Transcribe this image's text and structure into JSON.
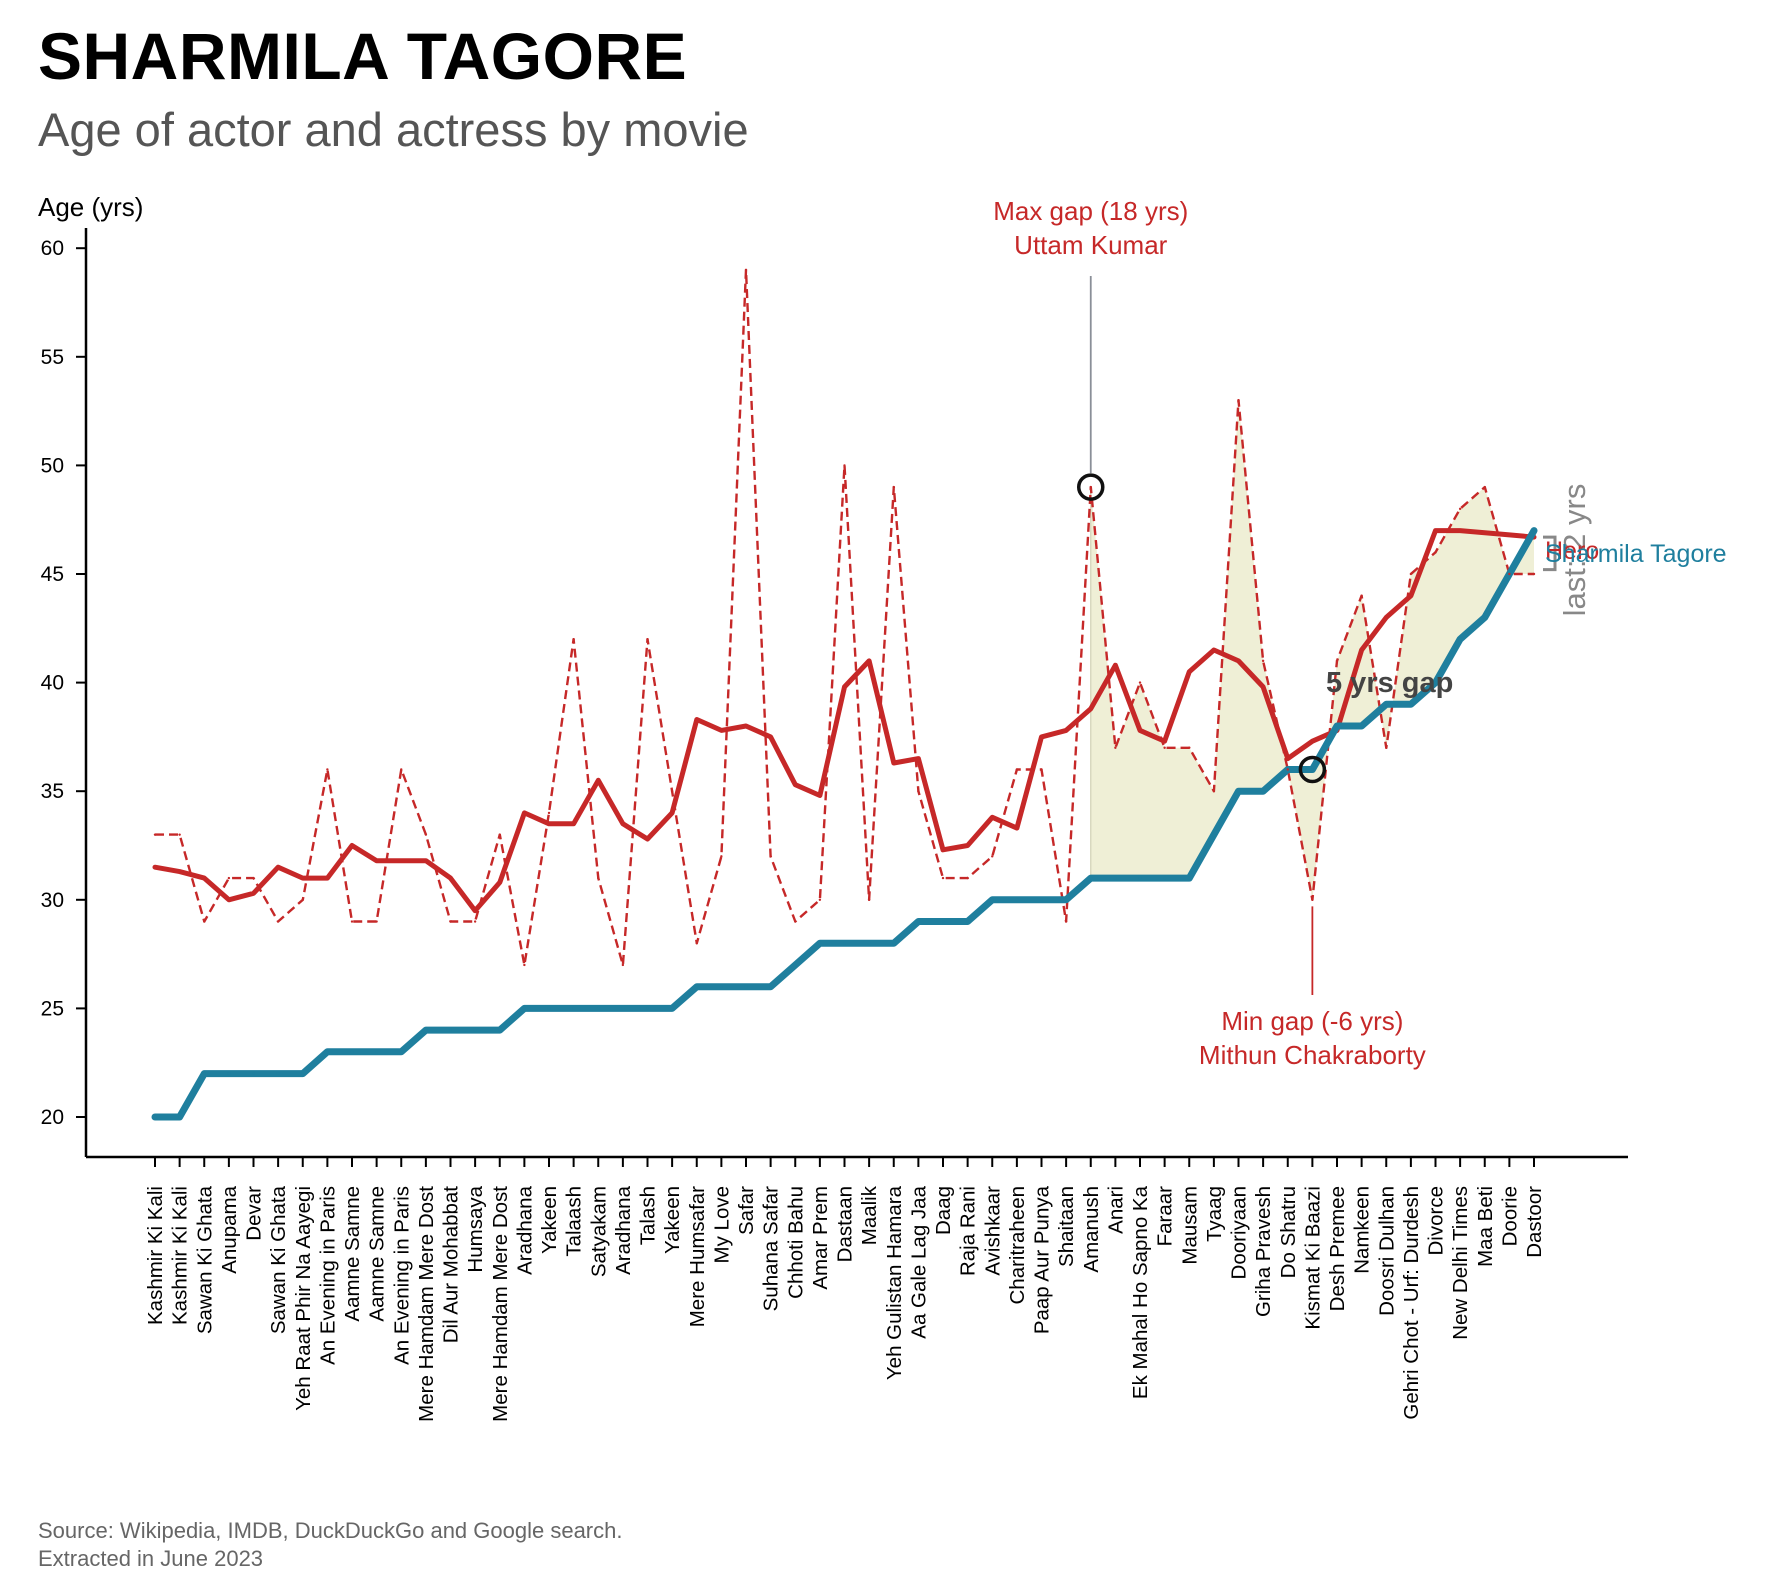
{
  "title": "SHARMILA TAGORE",
  "subtitle": "Age of actor and actress by movie",
  "source_line1": "Source: Wikipedia, IMDB, DuckDuckGo and Google search.",
  "source_line2": "Extracted in June 2023",
  "colors": {
    "hero": "#c62828",
    "actress": "#1f7f9e",
    "gap_fill": "#efefd6",
    "annotation": "#c62828",
    "marker": "#111111"
  },
  "chart_data": {
    "type": "line",
    "ylabel": "Age (yrs)",
    "ylim": [
      18,
      61
    ],
    "yticks": [
      20,
      25,
      30,
      35,
      40,
      45,
      50,
      55,
      60
    ],
    "categories": [
      "Kashmir Ki Kali",
      "Kashmir Ki Kali",
      "Sawan Ki Ghata",
      "Anupama",
      "Devar",
      "Sawan Ki Ghata",
      "Yeh Raat Phir Na Aayegi",
      "An Evening in Paris",
      "Aamne Samne",
      "Aamne Samne",
      "An Evening in Paris",
      "Mere Hamdam Mere Dost",
      "Dil Aur Mohabbat",
      "Humsaya",
      "Mere Hamdam Mere Dost",
      "Aradhana",
      "Yakeen",
      "Talaash",
      "Satyakam",
      "Aradhana",
      "Talash",
      "Yakeen",
      "Mere Humsafar",
      "My Love",
      "Safar",
      "Suhana Safar",
      "Chhoti Bahu",
      "Amar Prem",
      "Dastaan",
      "Maalik",
      "Yeh Gulistan Hamara",
      "Aa Gale Lag Jaa",
      "Daag",
      "Raja Rani",
      "Avishkaar",
      "Charitraheen",
      "Paap Aur Punya",
      "Shaitaan",
      "Amanush",
      "Anari",
      "Ek Mahal Ho Sapno Ka",
      "Faraar",
      "Mausam",
      "Tyaag",
      "Dooriyaan",
      "Griha Pravesh",
      "Do Shatru",
      "Kismat Ki Baazi",
      "Desh Premee",
      "Namkeen",
      "Doosri Dulhan",
      "Gehri Chot - Urf: Durdesh",
      "Divorce",
      "New Delhi Times",
      "Maa Beti",
      "Doorie",
      "Dastoor"
    ],
    "series": [
      {
        "name": "Sharmila Tagore",
        "style": "solid-thick",
        "values": [
          20,
          20,
          22,
          22,
          22,
          22,
          22,
          23,
          23,
          23,
          23,
          24,
          24,
          24,
          24,
          25,
          25,
          25,
          25,
          25,
          25,
          25,
          26,
          26,
          26,
          26,
          27,
          28,
          28,
          28,
          28,
          29,
          29,
          29,
          30,
          30,
          30,
          30,
          31,
          31,
          31,
          31,
          31,
          33,
          35,
          35,
          36,
          36,
          38,
          38,
          39,
          39,
          40,
          42,
          43,
          45,
          47
        ]
      },
      {
        "name": "Hero",
        "style": "dashed",
        "values": [
          33,
          33,
          29,
          31,
          31,
          29,
          30,
          36,
          29,
          29,
          36,
          33,
          29,
          29,
          33,
          27,
          34,
          42,
          31,
          27,
          42,
          35,
          28,
          32,
          59,
          32,
          29,
          30,
          50,
          30,
          49,
          35,
          31,
          31,
          32,
          36,
          36,
          29,
          49,
          37,
          40,
          37,
          37,
          35,
          53,
          41,
          36,
          30,
          41,
          44,
          37,
          45,
          46,
          48,
          49,
          45,
          45
        ]
      },
      {
        "name": "Hero",
        "style": "solid-smoothed",
        "values": [
          31.5,
          31.3,
          31,
          30,
          30.3,
          31.5,
          31,
          31,
          32.5,
          31.8,
          31.8,
          31.8,
          31,
          29.5,
          30.8,
          34,
          33.5,
          33.5,
          35.5,
          33.5,
          32.8,
          34,
          38.3,
          37.8,
          38,
          37.5,
          35.3,
          34.8,
          39.8,
          41,
          36.3,
          36.5,
          32.3,
          32.5,
          33.8,
          33.3,
          37.5,
          37.8,
          38.8,
          40.8,
          37.8,
          37.3,
          40.5,
          41.5,
          41,
          39.8,
          36.5,
          37.3,
          37.8,
          41.5,
          43,
          44,
          47,
          47,
          46.9,
          46.8,
          46.7
        ]
      }
    ],
    "annotations": [
      {
        "text_line1": "Max gap (18 yrs)",
        "text_line2": "Uttam Kumar",
        "movie_index": 38,
        "value": 49
      },
      {
        "text_line1": "Min gap (-6 yrs)",
        "text_line2": "Mithun Chakraborty",
        "movie_index": 47,
        "value": 36
      },
      {
        "text": "5 yrs gap"
      },
      {
        "text": "last: 2 yrs"
      }
    ],
    "line_labels": {
      "actress": "Sharmila Tagore",
      "hero": "Hero"
    },
    "shaded_from_index": 38,
    "grid": false
  }
}
